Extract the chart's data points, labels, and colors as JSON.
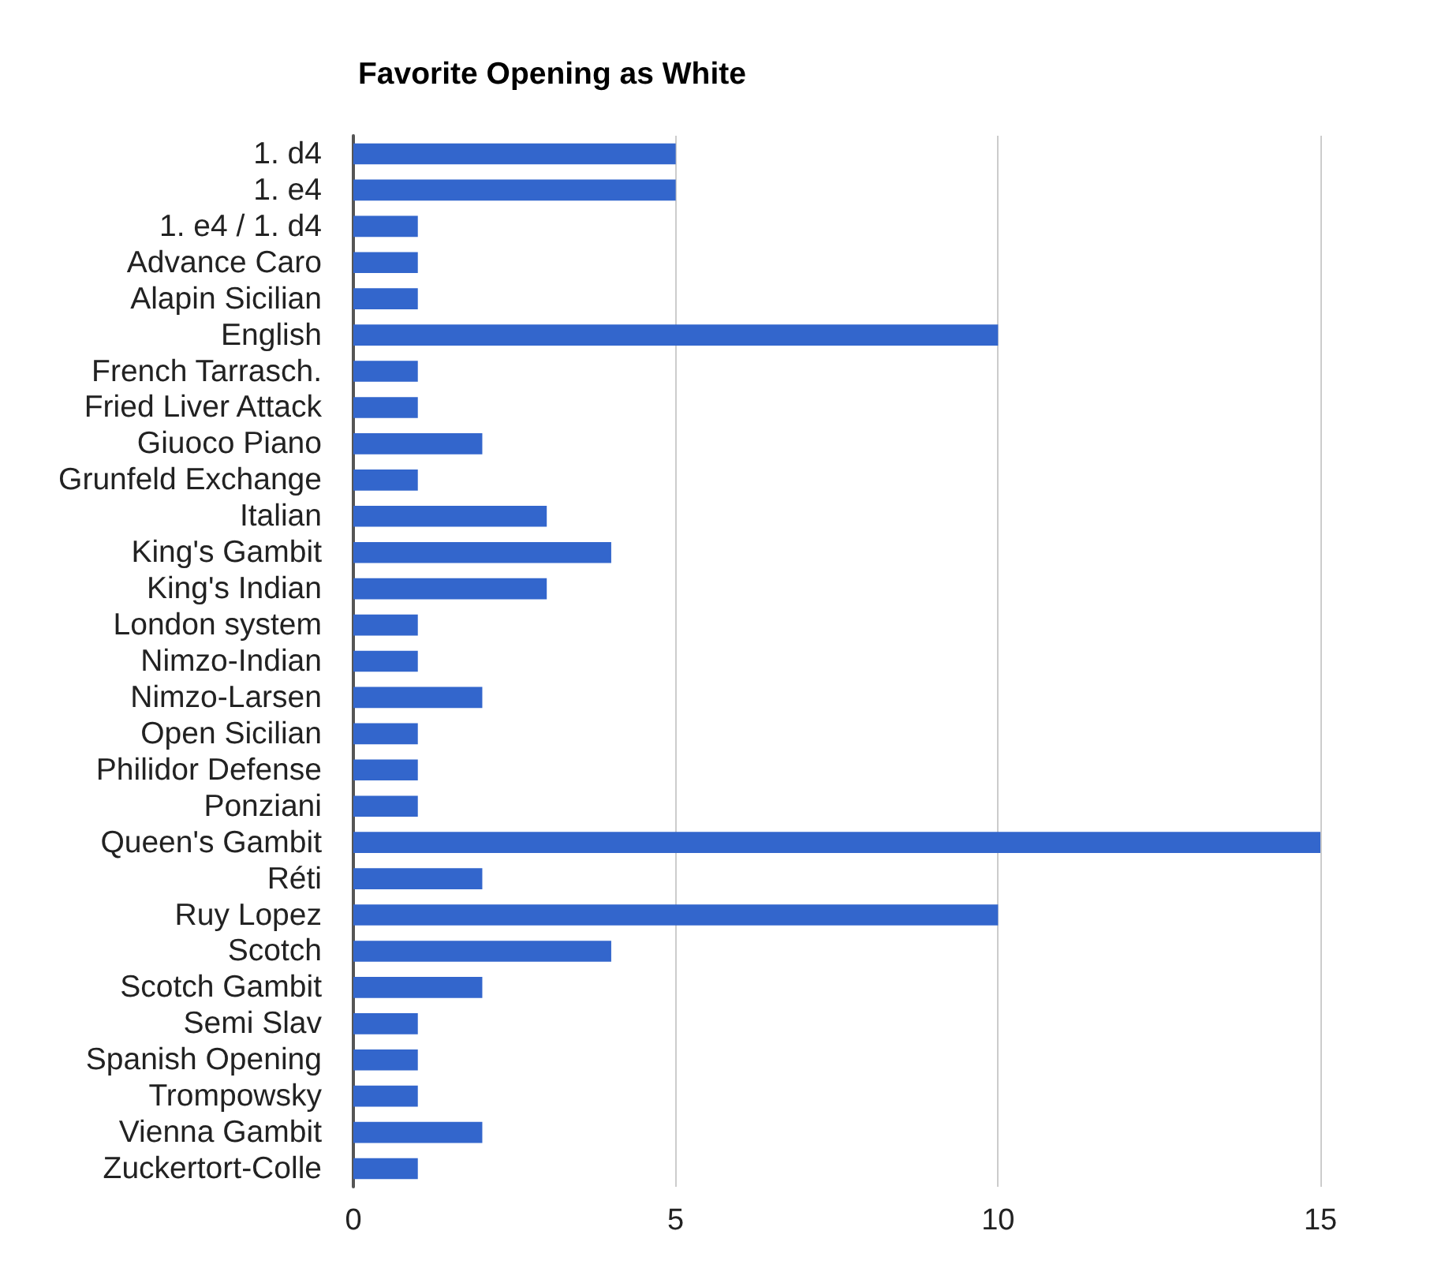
{
  "chart_data": {
    "type": "bar",
    "orientation": "horizontal",
    "title": "Favorite Opening as White",
    "categories": [
      "1. d4",
      "1. e4",
      "1. e4 / 1. d4",
      "Advance Caro",
      "Alapin Sicilian",
      "English",
      "French Tarrasch.",
      "Fried Liver Attack",
      "Giuoco Piano",
      "Grunfeld Exchange",
      "Italian",
      "King's Gambit",
      "King's Indian",
      "London system",
      "Nimzo-Indian",
      "Nimzo-Larsen",
      "Open Sicilian",
      "Philidor Defense",
      "Ponziani",
      "Queen's Gambit",
      "Réti",
      "Ruy Lopez",
      "Scotch",
      "Scotch Gambit",
      "Semi Slav",
      "Spanish Opening",
      "Trompowsky",
      "Vienna Gambit",
      "Zuckertort-Colle"
    ],
    "values": [
      5,
      5,
      1,
      1,
      1,
      10,
      1,
      1,
      2,
      1,
      3,
      4,
      3,
      1,
      1,
      2,
      1,
      1,
      1,
      15,
      2,
      10,
      4,
      2,
      1,
      1,
      1,
      2,
      1
    ],
    "color": "#3366cc",
    "xlim": [
      0,
      15
    ],
    "xticks": [
      0,
      5,
      10,
      15
    ],
    "grid": "x"
  }
}
